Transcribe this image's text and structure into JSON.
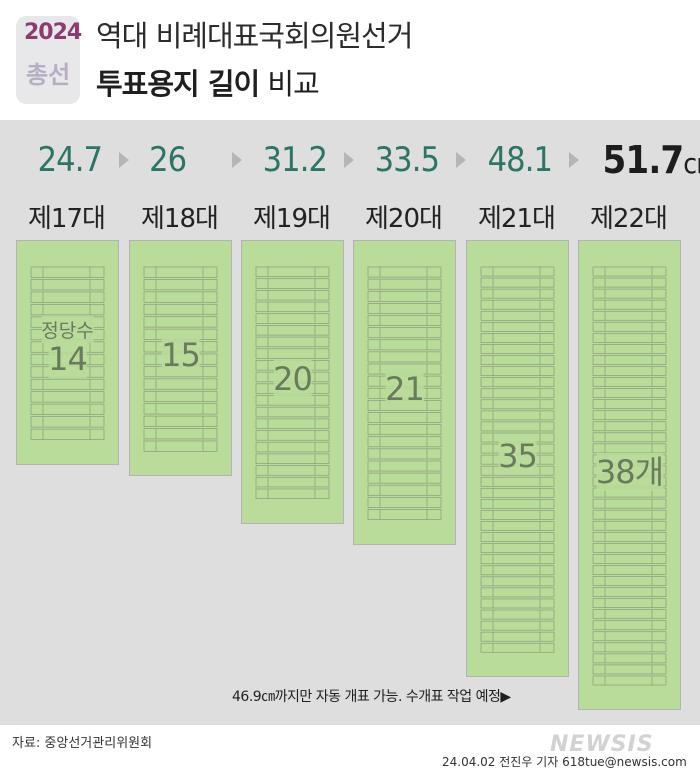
{
  "logo": {
    "year": "2024",
    "word": "총선"
  },
  "title": {
    "line1": "역대  비례대표국회의원선거",
    "line2_bold": "투표용지 길이",
    "line2_rest": " 비교"
  },
  "unit": "cm",
  "chart_data": {
    "type": "bar",
    "categories": [
      "제17대",
      "제18대",
      "제19대",
      "제20대",
      "제21대",
      "제22대"
    ],
    "series": [
      {
        "values": [
          24.7,
          26,
          31.2,
          33.5,
          48.1,
          51.7
        ]
      }
    ],
    "value_labels": [
      "24.7",
      "26",
      "31.2",
      "33.5",
      "48.1",
      "51.7"
    ],
    "party_count_labels": [
      "14",
      "15",
      "20",
      "21",
      "35",
      "38개"
    ],
    "party_counts": [
      14,
      15,
      20,
      21,
      35,
      38
    ],
    "first_caption": "정당수",
    "note": "46.9㎝까지만 자동 개표 가능. 수개표 작업 예정▶",
    "ylim": [
      0,
      51.7
    ]
  },
  "source": "자료: 중앙선거관리위원회",
  "credit": "24.04.02 전진우 기자 618tue@newsis.com",
  "watermark": "NEWSIS",
  "colors": {
    "ballot": "#b9dc9a",
    "value": "#2d7466",
    "background": "#dedede"
  }
}
